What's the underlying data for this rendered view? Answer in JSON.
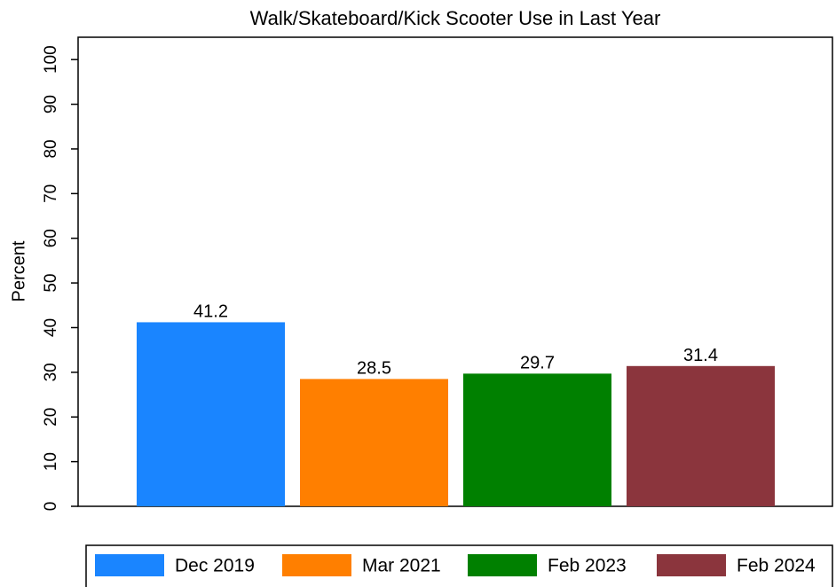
{
  "chart_data": {
    "type": "bar",
    "title": "Walk/Skateboard/Kick Scooter Use in Last Year",
    "ylabel": "Percent",
    "series": [
      {
        "name": "Dec 2019",
        "color": "#1a85ff",
        "values": [
          41.2
        ]
      },
      {
        "name": "Mar 2021",
        "color": "#ff7f00",
        "values": [
          28.5
        ]
      },
      {
        "name": "Feb 2023",
        "color": "#008000",
        "values": [
          29.7
        ]
      },
      {
        "name": "Feb 2024",
        "color": "#8b353d",
        "values": [
          31.4
        ]
      }
    ],
    "ylim": [
      0,
      105
    ],
    "yticks": [
      0,
      10,
      20,
      30,
      40,
      50,
      60,
      70,
      80,
      90,
      100
    ],
    "legend": "bottom"
  }
}
